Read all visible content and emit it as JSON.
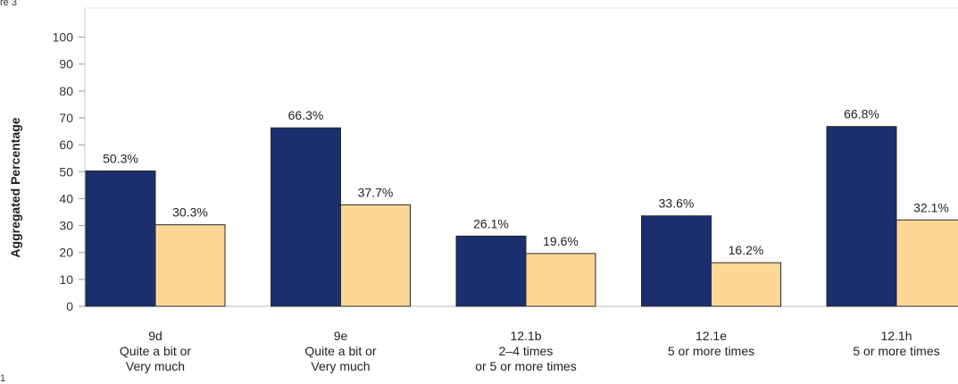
{
  "page": {
    "caption": "re 3",
    "corner_mark": "1"
  },
  "chart_data": {
    "type": "bar",
    "ylabel": "Aggregated Percentage",
    "ylim": [
      0,
      100
    ],
    "yticks": [
      0,
      10,
      20,
      30,
      40,
      50,
      60,
      70,
      80,
      90,
      100
    ],
    "grid": false,
    "categories": [
      {
        "code": "9d",
        "lines": [
          "Quite a bit or",
          "Very much"
        ]
      },
      {
        "code": "9e",
        "lines": [
          "Quite a bit or",
          "Very much"
        ]
      },
      {
        "code": "12.1b",
        "lines": [
          "2–4 times",
          "or 5 or more times"
        ]
      },
      {
        "code": "12.1e",
        "lines": [
          "5 or more times"
        ]
      },
      {
        "code": "12.1h",
        "lines": [
          "5 or more times"
        ]
      }
    ],
    "series": [
      {
        "color": "#1b2e6e",
        "values": [
          50.3,
          66.3,
          26.1,
          33.6,
          66.8
        ],
        "labels": [
          "50.3%",
          "66.3%",
          "26.1%",
          "33.6%",
          "66.8%"
        ]
      },
      {
        "color": "#fcd796",
        "values": [
          30.3,
          37.7,
          19.6,
          16.2,
          32.1
        ],
        "labels": [
          "30.3%",
          "37.7%",
          "19.6%",
          "16.2%",
          "32.1%"
        ]
      }
    ]
  }
}
